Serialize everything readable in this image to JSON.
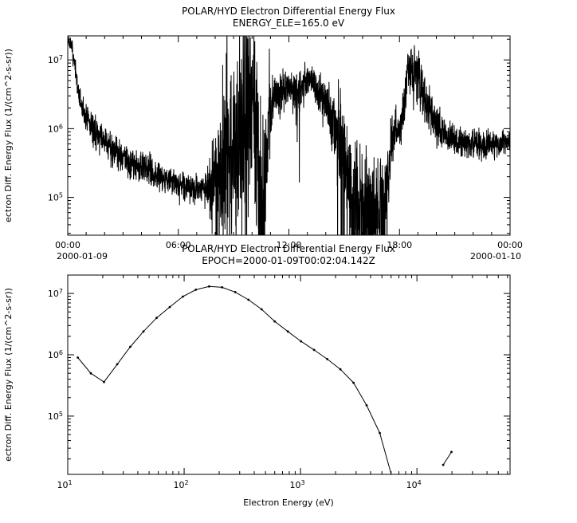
{
  "colors": {
    "line": "#000000",
    "background": "#ffffff",
    "frame": "#000000"
  },
  "chart_data": [
    {
      "type": "line",
      "title": "POLAR/HYD  Electron Differential Energy Flux",
      "subtitle": "ENERGY_ELE=165.0 eV",
      "ylabel": "ectron Diff. Energy Flux (1/(cm^2-s-sr))",
      "xlabel": "",
      "x_hours_range": [
        0,
        24
      ],
      "x_ticks": [
        {
          "hour": 0,
          "label": "00:00",
          "sub": "2000-01-09"
        },
        {
          "hour": 6,
          "label": "06:00"
        },
        {
          "hour": 12,
          "label": "12:00"
        },
        {
          "hour": 18,
          "label": "18:00"
        },
        {
          "hour": 24,
          "label": "00:00",
          "sub": "2000-01-10"
        }
      ],
      "x_minor_step_hours": 1,
      "y_log_range": [
        4.45,
        7.35
      ],
      "y_major_ticks": [
        5,
        6,
        7
      ],
      "grid": false,
      "legend": "none",
      "samples_per_hour": 120,
      "seed": 7,
      "anchors_hour_log10flux_sigma": [
        [
          0,
          7.3,
          0.03
        ],
        [
          0.25,
          7.15,
          0.06
        ],
        [
          0.45,
          6.75,
          0.08
        ],
        [
          0.7,
          6.35,
          0.1
        ],
        [
          1,
          6.15,
          0.1
        ],
        [
          1.5,
          5.95,
          0.12
        ],
        [
          2,
          5.8,
          0.12
        ],
        [
          2.5,
          5.7,
          0.12
        ],
        [
          3,
          5.6,
          0.13
        ],
        [
          3.5,
          5.5,
          0.12
        ],
        [
          4,
          5.45,
          0.12
        ],
        [
          5,
          5.3,
          0.12
        ],
        [
          6,
          5.2,
          0.1
        ],
        [
          6.5,
          5.15,
          0.1
        ],
        [
          7,
          5.1,
          0.1
        ],
        [
          7.5,
          5.15,
          0.12
        ],
        [
          7.8,
          5.2,
          0.25
        ],
        [
          8.2,
          5.3,
          0.4
        ],
        [
          8.6,
          5.5,
          0.55
        ],
        [
          9,
          5.7,
          0.6
        ],
        [
          9.4,
          6.0,
          0.75
        ],
        [
          9.8,
          6.2,
          0.85
        ],
        [
          10.1,
          6.4,
          0.9
        ],
        [
          10.35,
          5.6,
          0.8
        ],
        [
          10.6,
          5.2,
          0.5
        ],
        [
          10.9,
          6.1,
          0.3
        ],
        [
          11.2,
          6.45,
          0.18
        ],
        [
          11.6,
          6.55,
          0.14
        ],
        [
          12,
          6.6,
          0.12
        ],
        [
          12.4,
          6.5,
          0.16
        ],
        [
          12.8,
          6.6,
          0.14
        ],
        [
          13.1,
          6.75,
          0.1
        ],
        [
          13.4,
          6.65,
          0.12
        ],
        [
          13.7,
          6.5,
          0.15
        ],
        [
          14,
          6.4,
          0.18
        ],
        [
          14.4,
          6.15,
          0.25
        ],
        [
          14.8,
          5.8,
          0.35
        ],
        [
          15.2,
          5.3,
          0.4
        ],
        [
          15.6,
          5.0,
          0.4
        ],
        [
          16,
          4.9,
          0.35
        ],
        [
          16.4,
          4.85,
          0.35
        ],
        [
          16.8,
          4.8,
          0.35
        ],
        [
          17.1,
          4.9,
          0.35
        ],
        [
          17.4,
          5.4,
          0.3
        ],
        [
          17.6,
          5.9,
          0.2
        ],
        [
          17.9,
          5.95,
          0.15
        ],
        [
          18.2,
          6.15,
          0.2
        ],
        [
          18.45,
          6.85,
          0.18
        ],
        [
          18.7,
          6.8,
          0.2
        ],
        [
          19,
          6.75,
          0.22
        ],
        [
          19.3,
          6.5,
          0.2
        ],
        [
          19.6,
          6.3,
          0.18
        ],
        [
          20,
          6.05,
          0.15
        ],
        [
          20.5,
          5.9,
          0.12
        ],
        [
          21,
          5.85,
          0.1
        ],
        [
          21.5,
          5.8,
          0.1
        ],
        [
          22,
          5.8,
          0.1
        ],
        [
          22.5,
          5.75,
          0.1
        ],
        [
          23,
          5.75,
          0.1
        ],
        [
          23.5,
          5.8,
          0.09
        ],
        [
          24,
          5.85,
          0.08
        ]
      ],
      "up_spikes": [
        {
          "start": 7.6,
          "end": 8.6,
          "rate": 0.04,
          "height": 1.6
        },
        {
          "start": 8.6,
          "end": 10.3,
          "rate": 0.07,
          "height": 1.6
        },
        {
          "start": 10.9,
          "end": 11.3,
          "rate": 0.03,
          "height": 0.8
        }
      ],
      "down_spikes": [
        {
          "start": 8.0,
          "end": 10.6,
          "rate": 0.05,
          "depth": 1.8
        },
        {
          "start": 10.3,
          "end": 10.8,
          "rate": 0.25,
          "depth": 2.2
        },
        {
          "start": 12.2,
          "end": 12.6,
          "rate": 0.04,
          "depth": 0.9
        },
        {
          "start": 14.6,
          "end": 17.4,
          "rate": 0.13,
          "depth": 1.9
        }
      ]
    },
    {
      "type": "scatter-line",
      "title": "POLAR/HYD  Electron Differential Energy Flux",
      "subtitle": "EPOCH=2000-01-09T00:02:04.142Z",
      "ylabel": "ectron Diff. Energy Flux (1/(cm^2-s-sr))",
      "xlabel": "Electron Energy (eV)",
      "x_log_range": [
        1,
        4.8
      ],
      "x_major_ticks": [
        1,
        2,
        3,
        4
      ],
      "y_log_range": [
        4.05,
        7.3
      ],
      "y_major_ticks": [
        5,
        6,
        7
      ],
      "grid": false,
      "legend": "none",
      "marker": "dot",
      "segments_energy_eV_flux": [
        [
          [
            12.2,
            900000
          ],
          [
            15.8,
            500000
          ],
          [
            20.5,
            360000
          ],
          [
            26.6,
            700000
          ],
          [
            34.5,
            1350000
          ],
          [
            44.7,
            2400000
          ],
          [
            58,
            4000000
          ],
          [
            75.2,
            6000000
          ],
          [
            97.5,
            8900000
          ],
          [
            126,
            11500000
          ],
          [
            164,
            13000000
          ],
          [
            212,
            12600000
          ],
          [
            275,
            10500000
          ],
          [
            357,
            7900000
          ],
          [
            463,
            5500000
          ],
          [
            600,
            3500000
          ],
          [
            778,
            2400000
          ],
          [
            1009,
            1660000
          ],
          [
            1308,
            1200000
          ],
          [
            1696,
            850000
          ],
          [
            2199,
            580000
          ],
          [
            2851,
            350000
          ],
          [
            3697,
            150000
          ],
          [
            4793,
            53000
          ],
          [
            6214,
            9000
          ]
        ],
        [
          [
            16800,
            16000
          ],
          [
            19800,
            26000
          ]
        ]
      ]
    }
  ]
}
